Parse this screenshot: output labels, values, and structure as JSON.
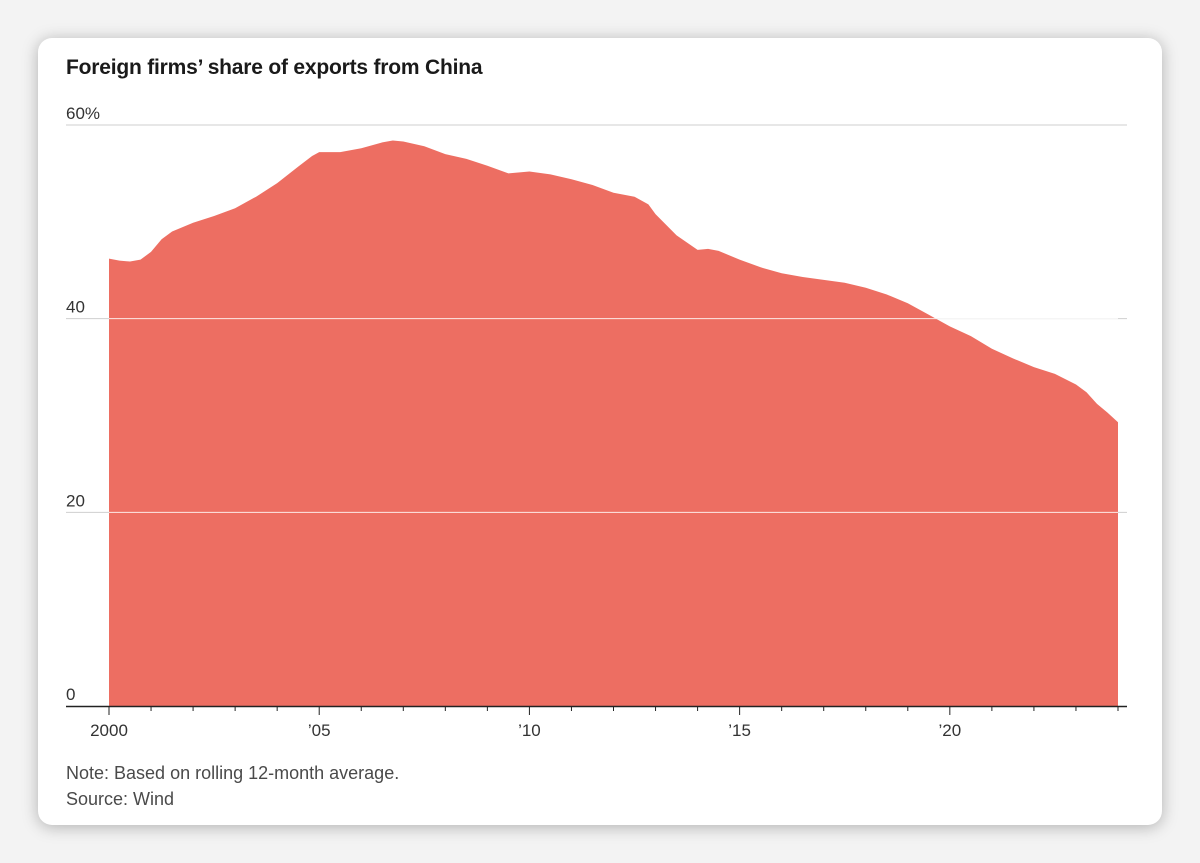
{
  "chart_data": {
    "type": "area",
    "title": "Foreign firms’ share of exports from China",
    "xlabel": "",
    "ylabel": "",
    "ylim": [
      0,
      60
    ],
    "xlim": [
      2000,
      2024
    ],
    "y_ticks": [
      {
        "value": 0,
        "label": "0"
      },
      {
        "value": 20,
        "label": "20"
      },
      {
        "value": 40,
        "label": "40"
      },
      {
        "value": 60,
        "label": "60%"
      }
    ],
    "x_major_ticks": [
      {
        "value": 2000,
        "label": "2000"
      },
      {
        "value": 2005,
        "label": "’05"
      },
      {
        "value": 2010,
        "label": "’10"
      },
      {
        "value": 2015,
        "label": "’15"
      },
      {
        "value": 2020,
        "label": "’20"
      }
    ],
    "grid": true,
    "color": "#ed6e62",
    "series": [
      {
        "x": [
          2000.0,
          2000.25,
          2000.5,
          2000.75,
          2001.0,
          2001.25,
          2001.5,
          2002.0,
          2002.5,
          2003.0,
          2003.5,
          2004.0,
          2004.5,
          2004.83,
          2005.0,
          2005.5,
          2006.0,
          2006.5,
          2006.75,
          2007.0,
          2007.5,
          2008.0,
          2008.5,
          2009.0,
          2009.5,
          2010.0,
          2010.5,
          2011.0,
          2011.5,
          2012.0,
          2012.5,
          2012.83,
          2013.0,
          2013.5,
          2014.0,
          2014.25,
          2014.5,
          2015.0,
          2015.5,
          2016.0,
          2016.5,
          2017.0,
          2017.5,
          2018.0,
          2018.5,
          2019.0,
          2019.5,
          2020.0,
          2020.5,
          2021.0,
          2021.5,
          2022.0,
          2022.5,
          2023.0,
          2023.25,
          2023.5,
          2023.75,
          2024.0
        ],
        "values": [
          46.2,
          46.0,
          45.9,
          46.1,
          46.9,
          48.2,
          49.0,
          49.9,
          50.6,
          51.4,
          52.6,
          54.0,
          55.7,
          56.8,
          57.2,
          57.2,
          57.6,
          58.2,
          58.4,
          58.3,
          57.8,
          57.0,
          56.5,
          55.8,
          55.0,
          55.2,
          54.9,
          54.4,
          53.8,
          53.0,
          52.6,
          51.8,
          50.8,
          48.6,
          47.1,
          47.2,
          47.0,
          46.1,
          45.3,
          44.7,
          44.3,
          44.0,
          43.7,
          43.2,
          42.5,
          41.6,
          40.4,
          39.2,
          38.2,
          36.9,
          35.9,
          35.0,
          34.3,
          33.2,
          32.4,
          31.2,
          30.3,
          29.3
        ]
      }
    ]
  },
  "footer": {
    "note": "Note: Based on rolling 12-month average.",
    "source": "Source: Wind"
  }
}
